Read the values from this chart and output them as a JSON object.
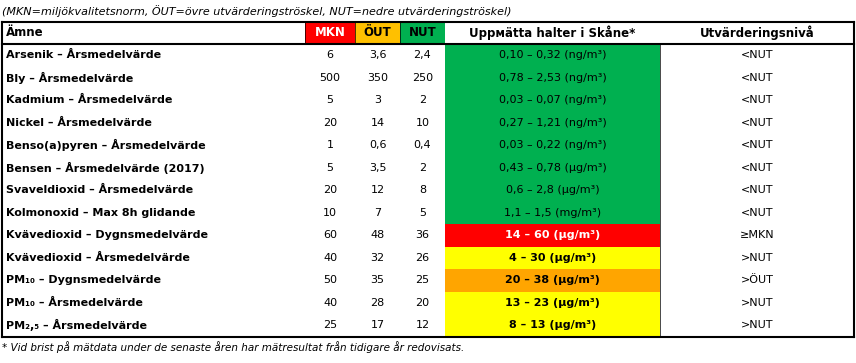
{
  "subtitle": "(MKN=miljökvalitetsnorm, ÖUT=övre utvärderingströskel, NUT=nedre utvärderingströskel)",
  "col_headers": [
    "Ämne",
    "MKN",
    "ÖUT",
    "NUT",
    "Uppмätta halter i Skåne*",
    "Utvärderingsnivå"
  ],
  "header_colors": [
    "#ffffff",
    "#ff0000",
    "#ffc000",
    "#00b050",
    "#ffffff",
    "#ffffff"
  ],
  "header_text_colors": [
    "#000000",
    "#ffffff",
    "#000000",
    "#000000",
    "#000000",
    "#000000"
  ],
  "rows": [
    [
      "Arsenik – Årsmedelvärde",
      "6",
      "3,6",
      "2,4",
      "0,10 – 0,32 (ng/m³)",
      "<NUT"
    ],
    [
      "Bly – Årsmedelvärde",
      "500",
      "350",
      "250",
      "0,78 – 2,53 (ng/m³)",
      "<NUT"
    ],
    [
      "Kadmium – Årsmedelvärde",
      "5",
      "3",
      "2",
      "0,03 – 0,07 (ng/m³)",
      "<NUT"
    ],
    [
      "Nickel – Årsmedelvärde",
      "20",
      "14",
      "10",
      "0,27 – 1,21 (ng/m³)",
      "<NUT"
    ],
    [
      "Benso(a)pyren – Årsmedelvärde",
      "1",
      "0,6",
      "0,4",
      "0,03 – 0,22 (ng/m³)",
      "<NUT"
    ],
    [
      "Bensen – Årsmedelvärde (2017)",
      "5",
      "3,5",
      "2",
      "0,43 – 0,78 (µg/m³)",
      "<NUT"
    ],
    [
      "Svaveldioxid – Årsmedelvärde",
      "20",
      "12",
      "8",
      "0,6 – 2,8 (µg/m³)",
      "<NUT"
    ],
    [
      "Kolmonoxid – Max 8h glidande",
      "10",
      "7",
      "5",
      "1,1 – 1,5 (mg/m³)",
      "<NUT"
    ],
    [
      "Kvävedioxid – Dygnsmedelvärde",
      "60",
      "48",
      "36",
      "14 – 60 (µg/m³)",
      "≥MKN"
    ],
    [
      "Kvävedioxid – Årsmedelvärde",
      "40",
      "32",
      "26",
      "4 – 30 (µg/m³)",
      ">NUT"
    ],
    [
      "PM₁₀ – Dygnsmedelvärde",
      "50",
      "35",
      "25",
      "20 – 38 (µg/m³)",
      ">ÖUT"
    ],
    [
      "PM₁₀ – Årsmedelvärde",
      "40",
      "28",
      "20",
      "13 – 23 (µg/m³)",
      ">NUT"
    ],
    [
      "PM₂,₅ – Årsmedelvärde",
      "25",
      "17",
      "12",
      "8 – 13 (µg/m³)",
      ">NUT"
    ]
  ],
  "measured_bg_colors": [
    "#00b050",
    "#00b050",
    "#00b050",
    "#00b050",
    "#00b050",
    "#00b050",
    "#00b050",
    "#00b050",
    "#ff0000",
    "#ffff00",
    "#ffa500",
    "#ffff00",
    "#ffff00"
  ],
  "measured_text_colors": [
    "#000000",
    "#000000",
    "#000000",
    "#000000",
    "#000000",
    "#000000",
    "#000000",
    "#000000",
    "#ffffff",
    "#000000",
    "#000000",
    "#000000",
    "#000000"
  ],
  "measured_bold": [
    false,
    false,
    false,
    false,
    false,
    false,
    false,
    false,
    true,
    true,
    true,
    true,
    true
  ],
  "footnote": "* Vid brist på mätdata under de senaste åren har mätresultat från tidigare år redovisats."
}
